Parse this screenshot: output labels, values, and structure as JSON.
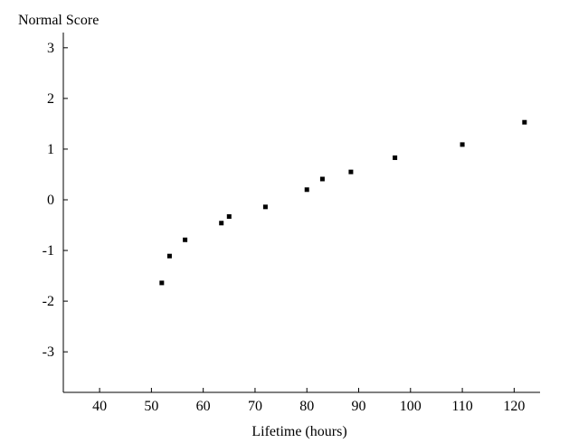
{
  "chart_data": {
    "type": "scatter",
    "title": "",
    "ylabel": "Normal Score",
    "xlabel": "Lifetime (hours)",
    "xlim": [
      33,
      125
    ],
    "ylim": [
      -3.8,
      3.3
    ],
    "xticks": [
      40,
      50,
      60,
      70,
      80,
      90,
      100,
      110,
      120
    ],
    "yticks": [
      3,
      2,
      1,
      0,
      -1,
      -2,
      -3
    ],
    "xtick_labels": [
      "40",
      "50",
      "60",
      "70",
      "80",
      "90",
      "100",
      "110",
      "120"
    ],
    "ytick_labels": [
      "3",
      "2",
      "1",
      "0",
      "-1",
      "-2",
      "-3"
    ],
    "grid": false,
    "marker_color": "#000000",
    "points": [
      {
        "x": 52,
        "y": -1.64
      },
      {
        "x": 53.5,
        "y": -1.11
      },
      {
        "x": 56.5,
        "y": -0.79
      },
      {
        "x": 63.5,
        "y": -0.46
      },
      {
        "x": 65,
        "y": -0.33
      },
      {
        "x": 72,
        "y": -0.14
      },
      {
        "x": 80,
        "y": 0.2
      },
      {
        "x": 83,
        "y": 0.41
      },
      {
        "x": 88.5,
        "y": 0.55
      },
      {
        "x": 97,
        "y": 0.83
      },
      {
        "x": 110,
        "y": 1.09
      },
      {
        "x": 122,
        "y": 1.53
      }
    ]
  }
}
